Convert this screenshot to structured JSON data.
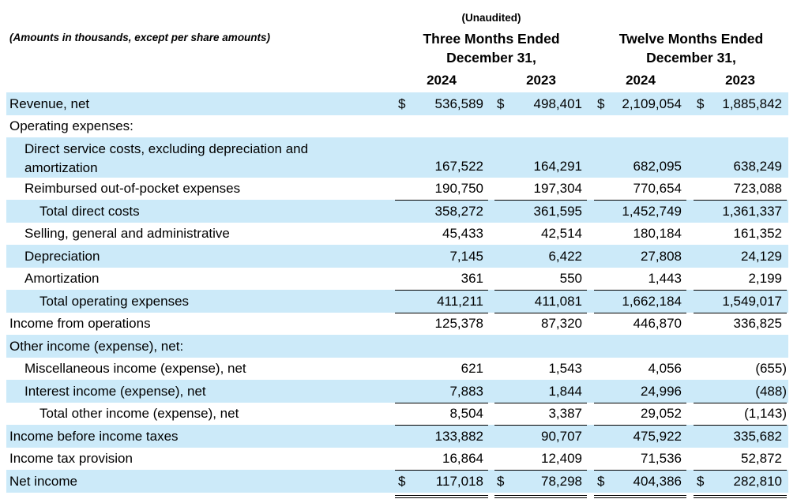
{
  "header": {
    "note": "(Amounts in thousands, except per share amounts)",
    "unaudited": "(Unaudited)",
    "groups": [
      {
        "title": [
          "Three Months Ended",
          "December 31,"
        ]
      },
      {
        "title": [
          "Twelve Months Ended",
          "December 31,"
        ]
      }
    ],
    "years": [
      "2024",
      "2023",
      "2024",
      "2023"
    ]
  },
  "table": {
    "rows": [
      {
        "label": [
          "Revenue, net"
        ],
        "level": 0,
        "prefix": "$",
        "values": [
          "536,589",
          "498,401",
          "2,109,054",
          "1,885,842"
        ]
      },
      {
        "label": [
          "Operating expenses:"
        ],
        "level": 0,
        "values": []
      },
      {
        "label": [
          "Direct service costs, excluding depreciation and",
          "amortization"
        ],
        "level": 1,
        "values": [
          "167,522",
          "164,291",
          "682,095",
          "638,249"
        ]
      },
      {
        "label": [
          "Reimbursed out-of-pocket expenses"
        ],
        "level": 1,
        "values": [
          "190,750",
          "197,304",
          "770,654",
          "723,088"
        ]
      },
      {
        "label": [
          "Total direct costs"
        ],
        "level": 2,
        "values": [
          "358,272",
          "361,595",
          "1,452,749",
          "1,361,337"
        ]
      },
      {
        "label": [
          "Selling, general and administrative"
        ],
        "level": 1,
        "values": [
          "45,433",
          "42,514",
          "180,184",
          "161,352"
        ]
      },
      {
        "label": [
          "Depreciation"
        ],
        "level": 1,
        "values": [
          "7,145",
          "6,422",
          "27,808",
          "24,129"
        ]
      },
      {
        "label": [
          "Amortization"
        ],
        "level": 1,
        "values": [
          "361",
          "550",
          "1,443",
          "2,199"
        ]
      },
      {
        "label": [
          "Total operating expenses"
        ],
        "level": 2,
        "values": [
          "411,211",
          "411,081",
          "1,662,184",
          "1,549,017"
        ]
      },
      {
        "label": [
          "Income from operations"
        ],
        "level": 0,
        "values": [
          "125,378",
          "87,320",
          "446,870",
          "336,825"
        ]
      },
      {
        "label": [
          "Other income (expense), net:"
        ],
        "level": 0,
        "values": []
      },
      {
        "label": [
          "Miscellaneous income (expense), net"
        ],
        "level": 1,
        "values": [
          "621",
          "1,543",
          "4,056",
          "(655)"
        ]
      },
      {
        "label": [
          "Interest income (expense), net"
        ],
        "level": 1,
        "values": [
          "7,883",
          "1,844",
          "24,996",
          "(488)"
        ]
      },
      {
        "label": [
          "Total other income (expense), net"
        ],
        "level": 2,
        "values": [
          "8,504",
          "3,387",
          "29,052",
          "(1,143)"
        ]
      },
      {
        "label": [
          "Income before income taxes"
        ],
        "level": 0,
        "values": [
          "133,882",
          "90,707",
          "475,922",
          "335,682"
        ]
      },
      {
        "label": [
          "Income tax provision"
        ],
        "level": 0,
        "values": [
          "16,864",
          "12,409",
          "71,536",
          "52,872"
        ]
      },
      {
        "label": [
          "Net income"
        ],
        "level": 0,
        "prefix": "$",
        "values": [
          "117,018",
          "78,298",
          "404,386",
          "282,810"
        ]
      }
    ]
  }
}
